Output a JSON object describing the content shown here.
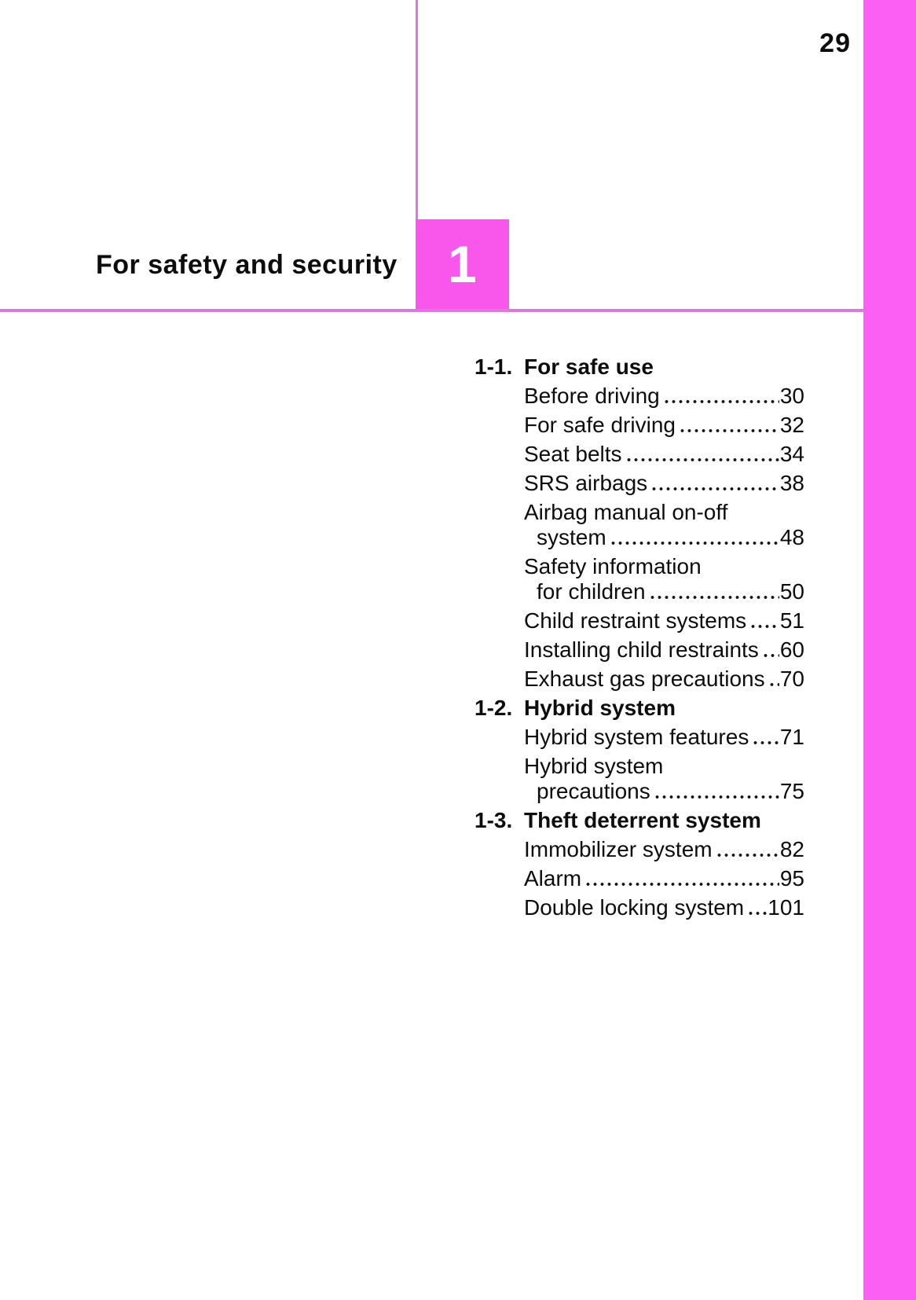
{
  "page": {
    "number": "29"
  },
  "chapter": {
    "title": "For safety and security",
    "number": "1"
  },
  "colors": {
    "band": "#fc5ff4",
    "box": "#f957ec",
    "rule": "#d97bd8",
    "dots": "#141414",
    "text": "#0d0d0d"
  },
  "toc": {
    "sections": [
      {
        "id": "1-1.",
        "title": "For safe use",
        "entries": [
          {
            "label": "Before driving",
            "page": "30"
          },
          {
            "label": "For safe driving",
            "page": "32"
          },
          {
            "label": "Seat belts",
            "page": "34"
          },
          {
            "label": "SRS airbags",
            "page": "38"
          },
          {
            "label": "Airbag manual on-off",
            "line2": "system",
            "page": "48"
          },
          {
            "label": "Safety information",
            "line2": "for children",
            "page": "50"
          },
          {
            "label": "Child restraint systems",
            "page": "51"
          },
          {
            "label": "Installing child restraints",
            "page": "60"
          },
          {
            "label": "Exhaust gas precautions",
            "page": "70"
          }
        ]
      },
      {
        "id": "1-2.",
        "title": "Hybrid system",
        "entries": [
          {
            "label": "Hybrid system features",
            "page": "71"
          },
          {
            "label": "Hybrid system",
            "line2": "precautions",
            "page": "75"
          }
        ]
      },
      {
        "id": "1-3.",
        "title": "Theft deterrent system",
        "entries": [
          {
            "label": "Immobilizer system",
            "page": "82"
          },
          {
            "label": "Alarm",
            "page": "95"
          },
          {
            "label": "Double locking system",
            "page": "101"
          }
        ]
      }
    ]
  }
}
